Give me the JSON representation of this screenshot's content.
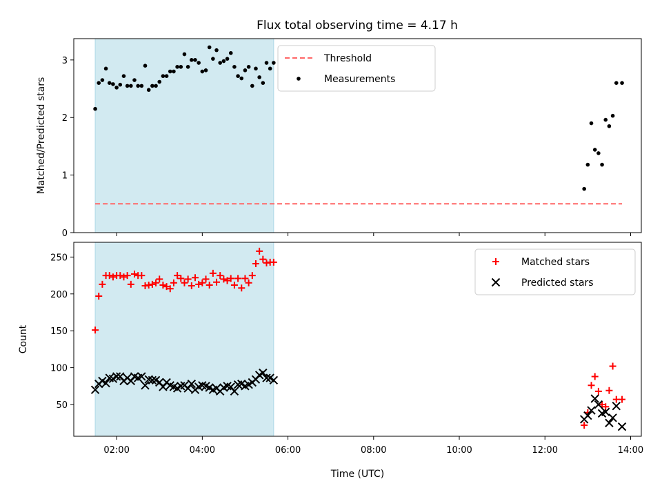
{
  "title": "Flux total observing time = 4.17 h",
  "colors": {
    "span": "#add8e6",
    "threshold": "#ff6666",
    "measurements": "#000000",
    "matched": "#ff0000",
    "predicted": "#000000"
  },
  "chart_data": [
    {
      "type": "scatter",
      "ylabel": "Matched/Predicted stars",
      "ylim": [
        0,
        3.37
      ],
      "yticks": [
        0,
        1,
        2,
        3
      ],
      "xlim": [
        "01:00",
        "14:15"
      ],
      "xticks": [
        "02:00",
        "04:00",
        "06:00",
        "08:00",
        "10:00",
        "12:00",
        "14:00"
      ],
      "shaded_span": [
        "01:30",
        "05:40"
      ],
      "threshold": {
        "name": "Threshold",
        "y": 0.5,
        "x_range": [
          "01:30",
          "13:48"
        ],
        "style": "dashed"
      },
      "legend": {
        "location": "top-right",
        "entries": [
          "Threshold",
          "Measurements"
        ]
      },
      "series": [
        {
          "name": "Measurements",
          "marker": "dot",
          "x": [
            "01:30",
            "01:35",
            "01:40",
            "01:45",
            "01:50",
            "01:55",
            "02:00",
            "02:05",
            "02:10",
            "02:15",
            "02:20",
            "02:25",
            "02:30",
            "02:35",
            "02:40",
            "02:45",
            "02:50",
            "02:55",
            "03:00",
            "03:05",
            "03:10",
            "03:15",
            "03:20",
            "03:25",
            "03:30",
            "03:35",
            "03:40",
            "03:45",
            "03:50",
            "03:55",
            "04:00",
            "04:05",
            "04:10",
            "04:15",
            "04:20",
            "04:25",
            "04:30",
            "04:35",
            "04:40",
            "04:45",
            "04:50",
            "04:55",
            "05:00",
            "05:05",
            "05:10",
            "05:15",
            "05:20",
            "05:25",
            "05:30",
            "05:35",
            "05:40",
            "12:55",
            "13:00",
            "13:05",
            "13:10",
            "13:15",
            "13:20",
            "13:25",
            "13:30",
            "13:35",
            "13:40",
            "13:48"
          ],
          "y": [
            2.15,
            2.6,
            2.65,
            2.85,
            2.6,
            2.58,
            2.52,
            2.57,
            2.72,
            2.55,
            2.55,
            2.65,
            2.55,
            2.55,
            2.9,
            2.48,
            2.55,
            2.55,
            2.62,
            2.72,
            2.72,
            2.8,
            2.8,
            2.88,
            2.88,
            3.1,
            2.88,
            3.0,
            3.0,
            2.95,
            2.8,
            2.82,
            3.22,
            3.02,
            3.17,
            2.95,
            2.98,
            3.02,
            3.12,
            2.88,
            2.72,
            2.68,
            2.82,
            2.88,
            2.55,
            2.85,
            2.7,
            2.6,
            2.95,
            2.85,
            2.95,
            0.76,
            1.18,
            1.9,
            1.44,
            1.38,
            1.18,
            1.96,
            1.85,
            2.03,
            2.6,
            2.6
          ]
        }
      ]
    },
    {
      "type": "scatter",
      "xlabel": "Time (UTC)",
      "ylabel": "Count",
      "ylim": [
        7,
        270
      ],
      "yticks": [
        50,
        100,
        150,
        200,
        250
      ],
      "xlim": [
        "01:00",
        "14:15"
      ],
      "xticks": [
        "02:00",
        "04:00",
        "06:00",
        "08:00",
        "10:00",
        "12:00",
        "14:00"
      ],
      "shaded_span": [
        "01:30",
        "05:40"
      ],
      "legend": {
        "location": "top-right",
        "entries": [
          "Matched stars",
          "Predicted stars"
        ]
      },
      "series": [
        {
          "name": "Matched stars",
          "marker": "plus",
          "x": [
            "01:30",
            "01:35",
            "01:40",
            "01:45",
            "01:50",
            "01:55",
            "02:00",
            "02:05",
            "02:10",
            "02:15",
            "02:20",
            "02:25",
            "02:30",
            "02:35",
            "02:40",
            "02:45",
            "02:50",
            "02:55",
            "03:00",
            "03:05",
            "03:10",
            "03:15",
            "03:20",
            "03:25",
            "03:30",
            "03:35",
            "03:40",
            "03:45",
            "03:50",
            "03:55",
            "04:00",
            "04:05",
            "04:10",
            "04:15",
            "04:20",
            "04:25",
            "04:30",
            "04:35",
            "04:40",
            "04:45",
            "04:50",
            "04:55",
            "05:00",
            "05:05",
            "05:10",
            "05:15",
            "05:20",
            "05:25",
            "05:30",
            "05:35",
            "05:40",
            "12:55",
            "13:00",
            "13:05",
            "13:10",
            "13:15",
            "13:20",
            "13:25",
            "13:30",
            "13:35",
            "13:40",
            "13:48"
          ],
          "y": [
            151,
            197,
            213,
            225,
            225,
            223,
            225,
            225,
            223,
            225,
            213,
            227,
            225,
            225,
            211,
            212,
            213,
            215,
            220,
            212,
            210,
            207,
            215,
            225,
            221,
            215,
            220,
            211,
            222,
            213,
            215,
            220,
            212,
            228,
            216,
            225,
            220,
            218,
            221,
            212,
            221,
            208,
            221,
            215,
            225,
            241,
            258,
            247,
            242,
            243,
            243,
            22,
            39,
            76,
            88,
            68,
            50,
            47,
            69,
            102,
            57,
            57
          ]
        },
        {
          "name": "Predicted stars",
          "marker": "x",
          "x": [
            "01:30",
            "01:35",
            "01:40",
            "01:45",
            "01:50",
            "01:55",
            "02:00",
            "02:05",
            "02:10",
            "02:15",
            "02:20",
            "02:25",
            "02:30",
            "02:35",
            "02:40",
            "02:45",
            "02:50",
            "02:55",
            "03:00",
            "03:05",
            "03:10",
            "03:15",
            "03:20",
            "03:25",
            "03:30",
            "03:35",
            "03:40",
            "03:45",
            "03:50",
            "03:55",
            "04:00",
            "04:05",
            "04:10",
            "04:15",
            "04:20",
            "04:25",
            "04:30",
            "04:35",
            "04:40",
            "04:45",
            "04:50",
            "04:55",
            "05:00",
            "05:05",
            "05:10",
            "05:15",
            "05:20",
            "05:25",
            "05:30",
            "05:35",
            "05:40",
            "12:55",
            "13:00",
            "13:05",
            "13:10",
            "13:15",
            "13:20",
            "13:25",
            "13:30",
            "13:35",
            "13:40",
            "13:48"
          ],
          "y": [
            70,
            78,
            82,
            79,
            86,
            85,
            88,
            88,
            82,
            86,
            82,
            88,
            86,
            88,
            76,
            84,
            83,
            83,
            80,
            74,
            80,
            76,
            74,
            72,
            75,
            76,
            72,
            78,
            70,
            74,
            76,
            75,
            73,
            70,
            72,
            68,
            73,
            75,
            74,
            68,
            77,
            78,
            75,
            77,
            80,
            84,
            90,
            93,
            86,
            86,
            83,
            30,
            35,
            42,
            58,
            50,
            38,
            40,
            25,
            32,
            48,
            20
          ]
        }
      ]
    }
  ]
}
